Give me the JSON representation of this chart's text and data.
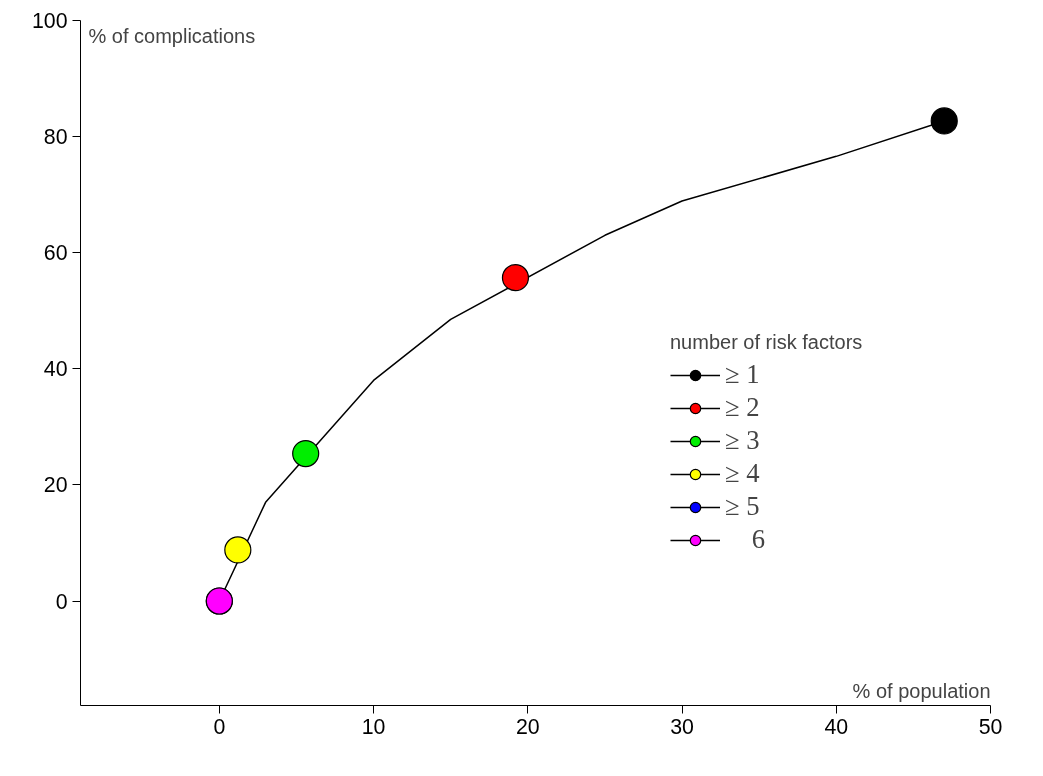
{
  "chart_data": {
    "type": "scatter",
    "xlabel": "% of population",
    "ylabel": "% of complications",
    "legend_title": "number of risk factors",
    "legend": "right",
    "grid": false,
    "marker": "circle",
    "xlim": [
      -9,
      50
    ],
    "ylim": [
      -18,
      100
    ],
    "xticks": [
      0,
      10,
      20,
      30,
      40,
      50
    ],
    "yticks": [
      0,
      20,
      40,
      60,
      80,
      100
    ],
    "series": [
      {
        "type": "line",
        "color": "#000000",
        "marker": "none",
        "line_style": "solid",
        "x": [
          0,
          3,
          10,
          15,
          25,
          30,
          40,
          47
        ],
        "values": [
          0,
          17,
          38,
          48.5,
          63,
          68.9,
          76.6,
          82.7
        ]
      },
      {
        "name": "≥ 1",
        "color": "#000000",
        "x": [
          47
        ],
        "values": [
          82.7
        ]
      },
      {
        "name": "≥ 2",
        "color": "#ff0000",
        "x": [
          19.2
        ],
        "values": [
          55.7
        ]
      },
      {
        "name": "≥ 3",
        "color": "#00ee00",
        "x": [
          5.6
        ],
        "values": [
          25.4
        ]
      },
      {
        "name": "≥ 4",
        "color": "#ffff00",
        "x": [
          1.2
        ],
        "values": [
          8.8
        ]
      },
      {
        "name": "≥ 5",
        "color": "#0000ff",
        "x": [
          null
        ],
        "values": [
          null
        ]
      },
      {
        "name": "    6",
        "color": "#ff00ff",
        "x": [
          0
        ],
        "values": [
          0
        ]
      }
    ]
  }
}
